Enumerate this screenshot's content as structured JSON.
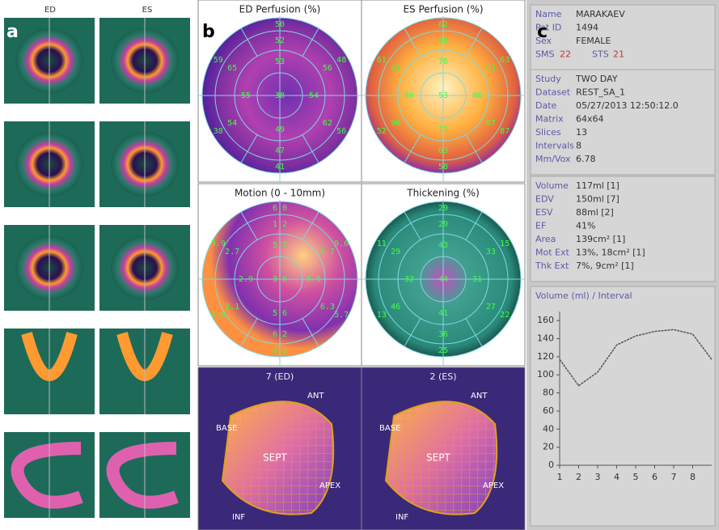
{
  "panels": {
    "a": "a",
    "b": "b",
    "c": "c"
  },
  "slices": {
    "ed": "ED",
    "es": "ES"
  },
  "polar_maps": [
    {
      "title": "ED Perfusion (%)",
      "center": "38",
      "inner": [
        "53",
        "54",
        "49",
        "55"
      ],
      "mid": [
        "52",
        "56",
        "62",
        "47",
        "54",
        "65"
      ],
      "outer": [
        "50",
        "48",
        "56",
        "41",
        "38",
        "59"
      ]
    },
    {
      "title": "ES Perfusion (%)",
      "center": "53",
      "inner": [
        "76",
        "86",
        "71",
        "86"
      ],
      "mid": [
        "80",
        "83",
        "87",
        "63",
        "90",
        "91"
      ],
      "outer": [
        "62",
        "63",
        "87",
        "58",
        "52",
        "61"
      ]
    },
    {
      "title": "Motion (0 - 10mm)",
      "center": "3.6",
      "inner": [
        "5.7",
        "5.5",
        "5.6",
        "2.9"
      ],
      "mid": [
        "1.2",
        "6.7",
        "6.3",
        "6.2",
        "2.1",
        "2.7"
      ],
      "outer": [
        "6.0",
        "9.0",
        "5.7",
        "8.2",
        "4.6",
        "3.9"
      ]
    },
    {
      "title": "Thickening (%)",
      "center": "44",
      "inner": [
        "43",
        "31",
        "41",
        "32"
      ],
      "mid": [
        "29",
        "33",
        "27",
        "36",
        "46",
        "29"
      ],
      "outer": [
        "29",
        "15",
        "22",
        "25",
        "13",
        "11"
      ]
    }
  ],
  "surfaces": [
    {
      "title": "7 (ED)",
      "ant": "ANT",
      "base": "BASE",
      "sept": "SEPT",
      "apex": "APEX",
      "inf": "INF"
    },
    {
      "title": "2 (ES)",
      "ant": "ANT",
      "base": "BASE",
      "sept": "SEPT",
      "apex": "APEX",
      "inf": "INF"
    }
  ],
  "info": [
    [
      {
        "label": "Name",
        "value": "MARAKAEV"
      },
      {
        "label": "Pat ID",
        "value": "1494"
      },
      {
        "label": "Sex",
        "value": "FEMALE"
      }
    ],
    [
      {
        "label": "Study",
        "value": "TWO DAY"
      },
      {
        "label": "Dataset",
        "value": "REST_SA_1"
      },
      {
        "label": "Date",
        "value": "05/27/2013 12:50:12.0"
      },
      {
        "label": "Matrix",
        "value": "64x64"
      },
      {
        "label": "Slices",
        "value": "13"
      },
      {
        "label": "Intervals",
        "value": "8"
      },
      {
        "label": "Mm/Vox",
        "value": "6.78"
      }
    ],
    [
      {
        "label": "Volume",
        "value": "117ml [1]"
      },
      {
        "label": "EDV",
        "value": "150ml [7]"
      },
      {
        "label": "ESV",
        "value": "88ml [2]"
      },
      {
        "label": "EF",
        "value": "41%"
      },
      {
        "label": "Area",
        "value": "139cm² [1]"
      },
      {
        "label": "Mot Ext",
        "value": "13%, 18cm² [1]"
      },
      {
        "label": "Thk Ext",
        "value": "7%, 9cm² [1]"
      }
    ]
  ],
  "scores": {
    "sms_label": "SMS",
    "sms": "22",
    "sts_label": "STS",
    "sts": "21"
  },
  "chart_data": {
    "type": "line",
    "title": "Volume (ml) / Interval",
    "x": [
      1,
      2,
      3,
      4,
      5,
      6,
      7,
      8,
      9
    ],
    "values": [
      117,
      88,
      103,
      133,
      143,
      148,
      150,
      145,
      117
    ],
    "color": "#555555",
    "xlim": [
      1,
      9
    ],
    "ylim": [
      0,
      170
    ],
    "xticks": [
      1,
      2,
      3,
      4,
      5,
      6,
      7,
      8
    ],
    "yticks": [
      0,
      20,
      40,
      60,
      80,
      100,
      120,
      140,
      160
    ]
  }
}
